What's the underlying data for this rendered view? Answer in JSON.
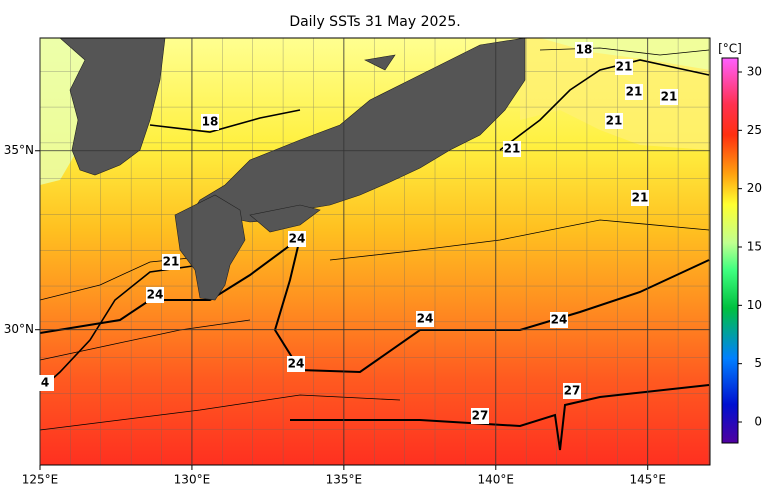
{
  "title": "Daily SSTs 31 May 2025.",
  "lon_ticks": [
    {
      "value": 125,
      "label": "125°E"
    },
    {
      "value": 130,
      "label": "130°E"
    },
    {
      "value": 135,
      "label": "135°E"
    },
    {
      "value": 140,
      "label": "140°E"
    },
    {
      "value": 145,
      "label": "145°E"
    }
  ],
  "lat_ticks": [
    {
      "value": 35,
      "label": "35°N"
    },
    {
      "value": 30,
      "label": "30°N"
    }
  ],
  "xlim": [
    125,
    147.05
  ],
  "ylim": [
    26.22,
    38.15
  ],
  "colorbar": {
    "unit": "[°C]",
    "range": [
      -1.8,
      31.2
    ],
    "ticks": [
      30,
      25,
      20,
      15,
      10,
      5,
      0
    ]
  },
  "contour_labels": [
    "18",
    "18",
    "21",
    "21",
    "21",
    "21",
    "21",
    "21",
    "21",
    "24",
    "24",
    "24",
    "24",
    "24",
    "4",
    "27",
    "27"
  ]
}
